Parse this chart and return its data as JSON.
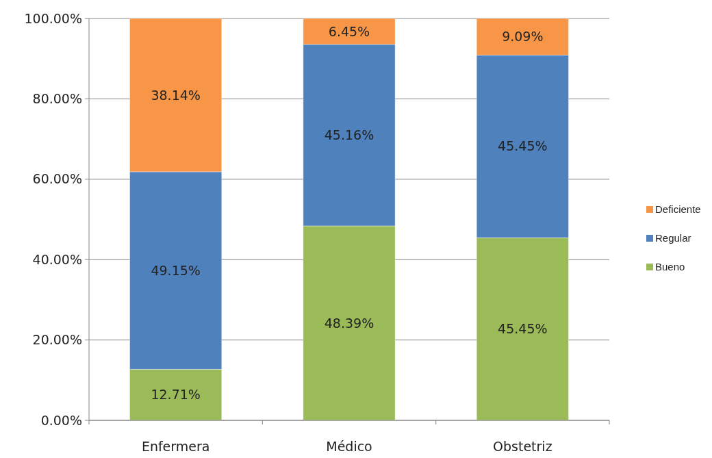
{
  "chart_data": {
    "type": "bar",
    "stacked": true,
    "categories": [
      "Enfermera",
      "Médico",
      "Obstetriz"
    ],
    "series": [
      {
        "name": "Bueno",
        "color": "#9bbb59",
        "values": [
          12.71,
          48.39,
          45.45
        ],
        "value_labels": [
          "12.71%",
          "48.39%",
          "45.45%"
        ]
      },
      {
        "name": "Regular",
        "color": "#4f81bd",
        "values": [
          49.15,
          45.16,
          45.45
        ],
        "value_labels": [
          "49.15%",
          "45.16%",
          "45.45%"
        ]
      },
      {
        "name": "Deficiente",
        "color": "#f79646",
        "values": [
          38.14,
          6.45,
          9.09
        ],
        "value_labels": [
          "38.14%",
          "6.45%",
          "9.09%"
        ]
      }
    ],
    "ylim": [
      0,
      100
    ],
    "yticks": [
      {
        "value": 0,
        "label": "0.00%"
      },
      {
        "value": 20,
        "label": "20.00%"
      },
      {
        "value": 40,
        "label": "40.00%"
      },
      {
        "value": 60,
        "label": "60.00%"
      },
      {
        "value": 80,
        "label": "80.00%"
      },
      {
        "value": 100,
        "label": "100.00%"
      }
    ],
    "grid": "y",
    "legend": "right"
  }
}
